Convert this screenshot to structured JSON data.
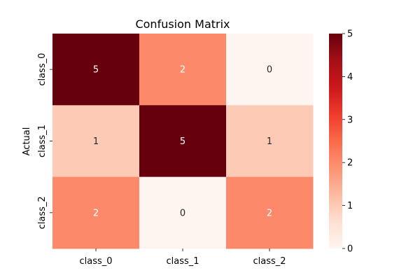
{
  "chart_data": {
    "type": "heatmap",
    "title": "Confusion Matrix",
    "xlabel": "",
    "ylabel": "Actual",
    "x_categories": [
      "class_0",
      "class_1",
      "class_2"
    ],
    "y_categories": [
      "class_0",
      "class_1",
      "class_2"
    ],
    "values": [
      [
        5,
        2,
        0
      ],
      [
        1,
        5,
        1
      ],
      [
        2,
        0,
        2
      ]
    ],
    "colormap": "Reds",
    "vmin": 0,
    "vmax": 5,
    "colorbar_ticks": [
      "0",
      "1",
      "2",
      "3",
      "4",
      "5"
    ],
    "annotations_shown": true,
    "colors": {
      "low": "#fff5f0",
      "high": "#67000d",
      "text_dark_bg": "#ffffff",
      "text_light_bg": "#262626"
    }
  }
}
